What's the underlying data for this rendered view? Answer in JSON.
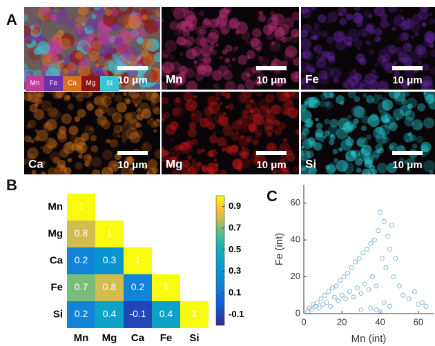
{
  "panel_labels": [
    "A",
    "B",
    "C"
  ],
  "eds_maps": {
    "legend": [
      {
        "name": "Mn",
        "color": "#c23c9c"
      },
      {
        "name": "Fe",
        "color": "#6a34a8"
      },
      {
        "name": "Ca",
        "color": "#d8701e"
      },
      {
        "name": "Mg",
        "color": "#8e1414"
      },
      {
        "name": "Si",
        "color": "#3cc4d2"
      }
    ],
    "tiles": [
      {
        "scale_bar": "10 μm",
        "color": "#a06070"
      },
      {
        "label": "Mn",
        "scale_bar": "10 μm",
        "color": "#c0307a"
      },
      {
        "label": "Fe",
        "scale_bar": "10 μm",
        "color": "#6a28b0"
      },
      {
        "label": "Ca",
        "scale_bar": "10 μm",
        "color": "#e07818"
      },
      {
        "label": "Mg",
        "scale_bar": "10 μm",
        "color": "#d01818"
      },
      {
        "label": "Si",
        "scale_bar": "10 μm",
        "color": "#28e0e8"
      }
    ]
  },
  "chart_data": [
    {
      "type": "heatmap",
      "colormap": "parula",
      "x_categories": [
        "Mn",
        "Mg",
        "Ca",
        "Fe",
        "Si"
      ],
      "y_categories": [
        "Mn",
        "Mg",
        "Ca",
        "Fe",
        "Si"
      ],
      "values": [
        [
          1,
          null,
          null,
          null,
          null
        ],
        [
          0.8,
          1,
          null,
          null,
          null
        ],
        [
          0.2,
          0.3,
          1,
          null,
          null
        ],
        [
          0.7,
          0.8,
          0.2,
          1,
          null
        ],
        [
          0.2,
          0.4,
          -0.1,
          0.4,
          1
        ]
      ],
      "clim": [
        -0.2,
        1.0
      ],
      "cticks": [
        -0.1,
        0.1,
        0.3,
        0.5,
        0.7,
        0.9
      ]
    },
    {
      "type": "scatter",
      "xlabel": "Mn (int)",
      "ylabel": "Fe (int)",
      "color": "#4a90c8",
      "x": [
        2,
        3,
        4,
        5,
        6,
        7,
        8,
        9,
        10,
        11,
        12,
        13,
        14,
        15,
        16,
        17,
        18,
        19,
        20,
        21,
        22,
        23,
        24,
        25,
        26,
        27,
        28,
        29,
        30,
        31,
        32,
        33,
        34,
        35,
        36,
        37,
        38,
        39,
        40,
        41,
        42,
        43,
        44,
        45,
        46,
        47,
        48,
        50,
        52,
        55,
        58,
        60,
        62,
        64,
        30,
        35,
        40,
        42,
        45,
        38
      ],
      "y": [
        1,
        3,
        2,
        5,
        4,
        6,
        3,
        8,
        5,
        10,
        6,
        12,
        4,
        14,
        9,
        15,
        7,
        18,
        10,
        20,
        8,
        22,
        12,
        25,
        9,
        28,
        14,
        30,
        11,
        33,
        16,
        35,
        13,
        38,
        20,
        40,
        15,
        45,
        55,
        30,
        50,
        25,
        42,
        35,
        48,
        20,
        30,
        15,
        10,
        8,
        12,
        5,
        6,
        4,
        2,
        3,
        1,
        6,
        4,
        2
      ],
      "xlim": [
        0,
        68
      ],
      "ylim": [
        0,
        70
      ],
      "xticks": [
        0,
        20,
        40,
        60
      ],
      "yticks": [
        0,
        20,
        40,
        60
      ]
    }
  ]
}
